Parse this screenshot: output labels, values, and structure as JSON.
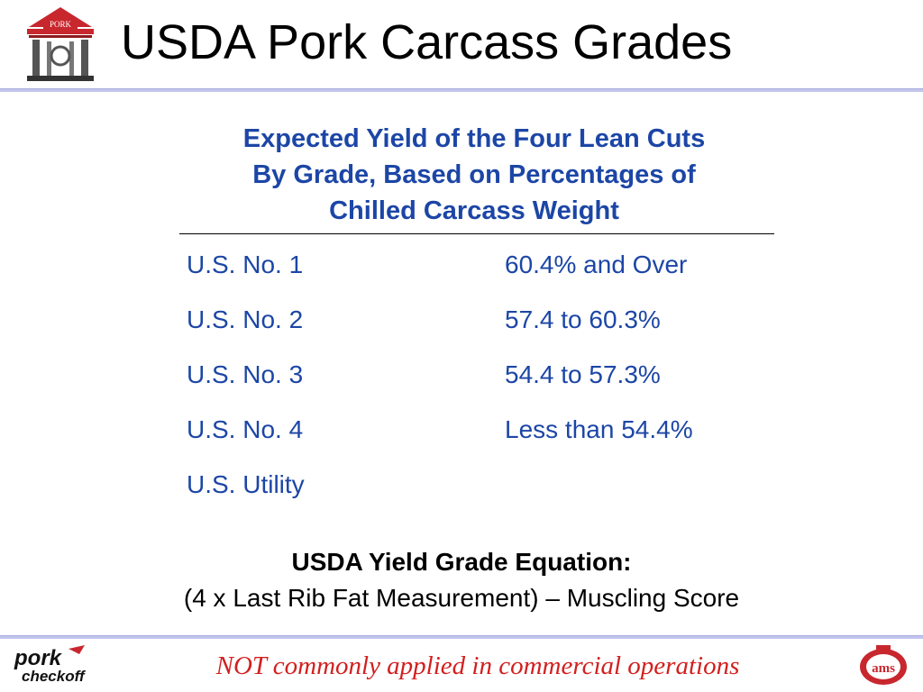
{
  "header": {
    "logo_text": "PORK",
    "title": "USDA Pork Carcass Grades"
  },
  "subtitle": {
    "line1": "Expected Yield of the Four Lean Cuts",
    "line2": "By Grade, Based on Percentages of",
    "line3": "Chilled Carcass Weight"
  },
  "grades": [
    {
      "name": "U.S. No. 1",
      "yield": "60.4% and Over"
    },
    {
      "name": "U.S. No. 2",
      "yield": "57.4 to 60.3%"
    },
    {
      "name": "U.S. No. 3",
      "yield": "54.4 to 57.3%"
    },
    {
      "name": "U.S. No. 4",
      "yield": "Less than 54.4%"
    },
    {
      "name": "U.S. Utility",
      "yield": ""
    }
  ],
  "equation": {
    "title": "USDA Yield Grade Equation:",
    "formula": "(4 x Last Rib Fat Measurement) – Muscling Score"
  },
  "footer": {
    "note": "NOT commonly applied in commercial operations",
    "left_logo_text_1": "pork",
    "left_logo_text_2": "checkoff",
    "right_logo_text": "ams"
  },
  "colors": {
    "accent_blue": "#1c46a6",
    "rule_lavender": "#c2c5ec",
    "footer_red": "#d21f1f",
    "logo_red": "#c8272e"
  }
}
